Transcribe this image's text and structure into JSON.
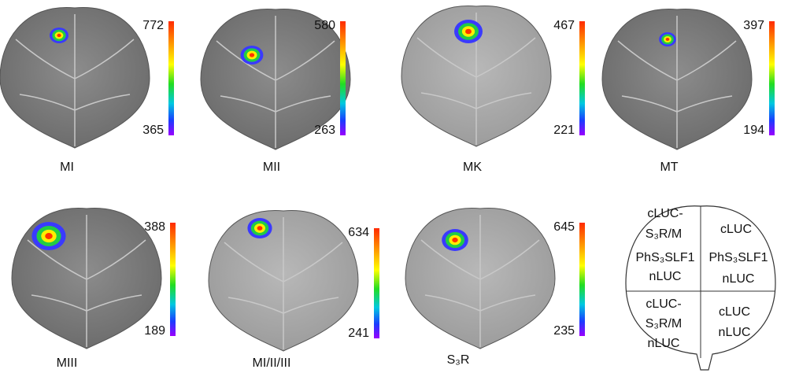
{
  "panels": [
    {
      "label": "MI",
      "max": 772,
      "min": 365
    },
    {
      "label": "MII",
      "max": 580,
      "min": 263
    },
    {
      "label": "MK",
      "max": 467,
      "min": 221
    },
    {
      "label": "MT",
      "max": 397,
      "min": 194
    },
    {
      "label": "MIII",
      "max": 388,
      "min": 189
    },
    {
      "label": "MI/II/III",
      "max": 634,
      "min": 241
    },
    {
      "label": "S₃R",
      "max": 645,
      "min": 235
    }
  ],
  "diagram": {
    "cells": [
      [
        "cLUC-",
        "S₃R/M",
        "PhS₃SLF1",
        "nLUC"
      ],
      [
        "cLUC",
        "PhS₃SLF1",
        "nLUC"
      ],
      [
        "cLUC-",
        "S₃R/M",
        "nLUC"
      ],
      [
        "cLUC",
        "nLUC"
      ]
    ]
  }
}
